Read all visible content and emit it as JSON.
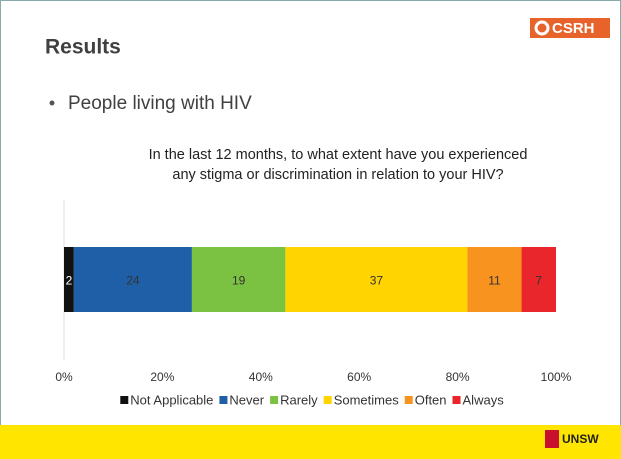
{
  "slide": {
    "heading": "Results",
    "bullet": "People living with HIV",
    "logo_top": "CSRH",
    "logo_bottom": "UNSW"
  },
  "chart_data": {
    "type": "stacked_bar_horizontal",
    "title": "In the last 12 months, to what extent have you experienced any stigma or discrimination in relation to your HIV?",
    "categories": [
      null
    ],
    "series": [
      {
        "name": "Not Applicable",
        "color": "#111111",
        "values": [
          2
        ]
      },
      {
        "name": "Never",
        "color": "#1f5fa8",
        "values": [
          24
        ]
      },
      {
        "name": "Rarely",
        "color": "#7cc242",
        "values": [
          19
        ]
      },
      {
        "name": "Sometimes",
        "color": "#ffd400",
        "values": [
          37
        ]
      },
      {
        "name": "Often",
        "color": "#f7931e",
        "values": [
          11
        ]
      },
      {
        "name": "Always",
        "color": "#e8262b",
        "values": [
          7
        ]
      }
    ],
    "xlim": [
      0,
      100
    ],
    "xticks": [
      {
        "value": 0,
        "label": "0%"
      },
      {
        "value": 20,
        "label": "20%"
      },
      {
        "value": 40,
        "label": "40%"
      },
      {
        "value": 60,
        "label": "60%"
      },
      {
        "value": 80,
        "label": "80%"
      },
      {
        "value": 100,
        "label": "100%"
      }
    ],
    "grid": false,
    "legend": "bottom"
  }
}
